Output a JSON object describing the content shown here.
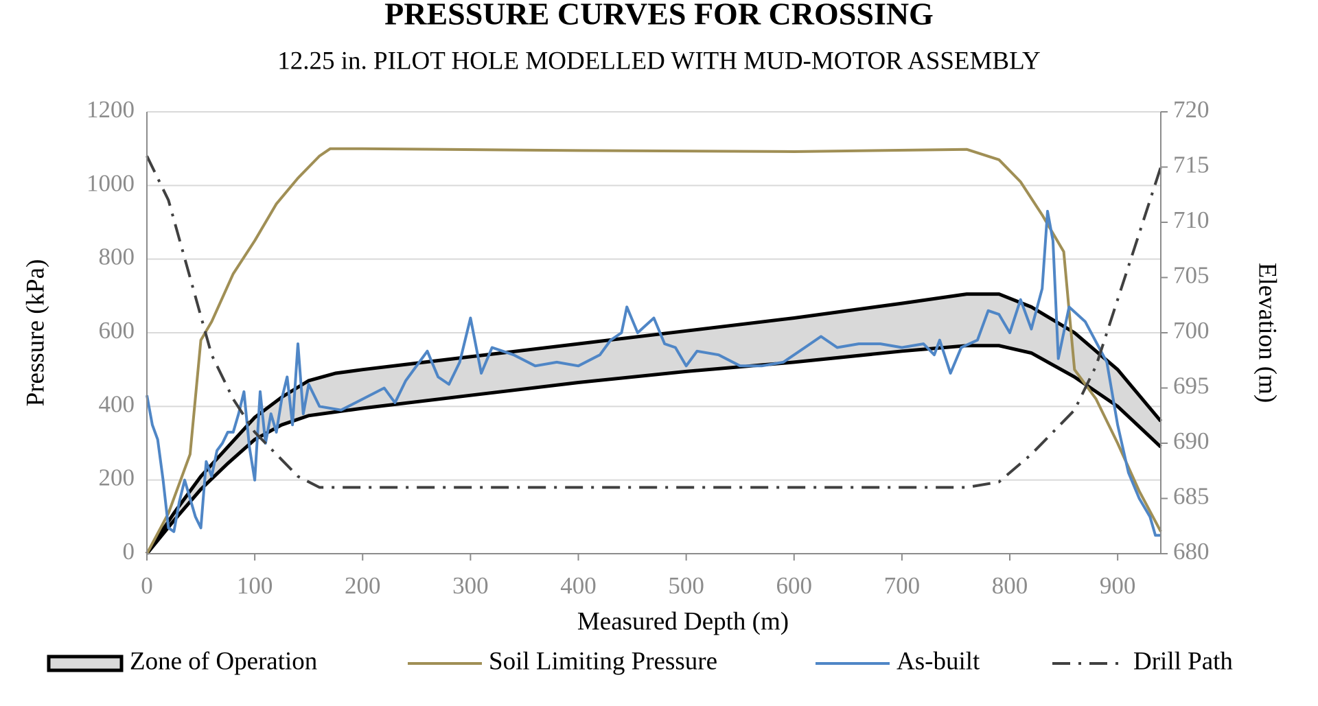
{
  "chart_data": {
    "type": "line",
    "title": "PRESSURE CURVES FOR CROSSING",
    "subtitle": "12.25 in. PILOT HOLE MODELLED WITH MUD-MOTOR ASSEMBLY",
    "x_label": "Measured Depth (m)",
    "y_label": "Pressure (kPa)",
    "y2_label": "Elevation (m)",
    "xlim": [
      0,
      940
    ],
    "ylim": [
      0,
      1200
    ],
    "y2lim": [
      680,
      720
    ],
    "xticks": [
      0,
      100,
      200,
      300,
      400,
      500,
      600,
      700,
      800,
      900
    ],
    "yticks": [
      0,
      200,
      400,
      600,
      800,
      1000,
      1200
    ],
    "y2ticks": [
      680,
      685,
      690,
      695,
      700,
      705,
      710,
      715,
      720
    ],
    "grid": true,
    "legend": "bottom",
    "series": [
      {
        "name": "Zone of Operation",
        "kind": "band",
        "color": "#d9d9d9",
        "edge_color": "#000000",
        "x": [
          0,
          25,
          50,
          75,
          100,
          125,
          150,
          175,
          200,
          300,
          400,
          500,
          600,
          700,
          760,
          790,
          820,
          860,
          900,
          940
        ],
        "values": [
          0,
          110,
          210,
          290,
          370,
          425,
          470,
          490,
          500,
          535,
          570,
          605,
          640,
          680,
          705,
          705,
          670,
          600,
          500,
          360
        ],
        "lower": [
          0,
          90,
          175,
          245,
          310,
          350,
          375,
          385,
          395,
          430,
          465,
          495,
          520,
          550,
          565,
          565,
          545,
          480,
          400,
          290
        ]
      },
      {
        "name": "Soil Limiting Pressure",
        "kind": "line",
        "color": "#a08f55",
        "x": [
          0,
          20,
          40,
          50,
          60,
          80,
          100,
          120,
          140,
          160,
          170,
          200,
          400,
          600,
          760,
          790,
          810,
          830,
          850,
          860,
          880,
          900,
          920,
          940
        ],
        "values": [
          0,
          110,
          270,
          580,
          630,
          760,
          850,
          950,
          1020,
          1080,
          1100,
          1100,
          1095,
          1092,
          1098,
          1070,
          1010,
          920,
          820,
          500,
          420,
          300,
          170,
          60
        ]
      },
      {
        "name": "As-built",
        "kind": "line",
        "color": "#4f86c6",
        "x": [
          0,
          5,
          10,
          15,
          20,
          25,
          30,
          35,
          40,
          45,
          50,
          55,
          60,
          65,
          70,
          75,
          80,
          85,
          90,
          95,
          100,
          105,
          110,
          115,
          120,
          125,
          130,
          135,
          140,
          145,
          150,
          160,
          180,
          200,
          220,
          230,
          240,
          260,
          270,
          280,
          290,
          300,
          310,
          320,
          340,
          360,
          380,
          400,
          420,
          430,
          440,
          445,
          455,
          470,
          480,
          490,
          500,
          510,
          530,
          550,
          570,
          590,
          610,
          625,
          640,
          660,
          680,
          700,
          720,
          730,
          735,
          745,
          755,
          770,
          780,
          790,
          800,
          810,
          820,
          830,
          835,
          840,
          845,
          855,
          870,
          890,
          900,
          910,
          920,
          930,
          935,
          940
        ],
        "values": [
          430,
          350,
          310,
          200,
          70,
          60,
          140,
          200,
          150,
          100,
          70,
          250,
          210,
          280,
          300,
          330,
          330,
          380,
          440,
          290,
          200,
          440,
          300,
          380,
          330,
          420,
          480,
          350,
          570,
          380,
          460,
          400,
          390,
          420,
          450,
          410,
          470,
          550,
          480,
          460,
          520,
          640,
          490,
          560,
          540,
          510,
          520,
          510,
          540,
          580,
          600,
          670,
          600,
          640,
          570,
          560,
          510,
          550,
          540,
          510,
          510,
          520,
          560,
          590,
          560,
          570,
          570,
          560,
          570,
          540,
          580,
          490,
          560,
          580,
          660,
          650,
          600,
          690,
          610,
          720,
          930,
          850,
          530,
          670,
          630,
          520,
          350,
          220,
          150,
          100,
          50,
          50
        ]
      },
      {
        "name": "Drill Path",
        "kind": "line",
        "axis": "y2",
        "dash": "dash-dot",
        "color": "#404040",
        "x": [
          0,
          20,
          40,
          60,
          80,
          100,
          120,
          140,
          160,
          180,
          760,
          790,
          820,
          860,
          880,
          900,
          920,
          940
        ],
        "values": [
          716,
          712,
          705,
          698,
          694,
          691,
          689,
          687,
          686,
          686,
          686,
          686.5,
          689,
          693,
          697,
          703,
          709,
          715
        ]
      }
    ]
  }
}
